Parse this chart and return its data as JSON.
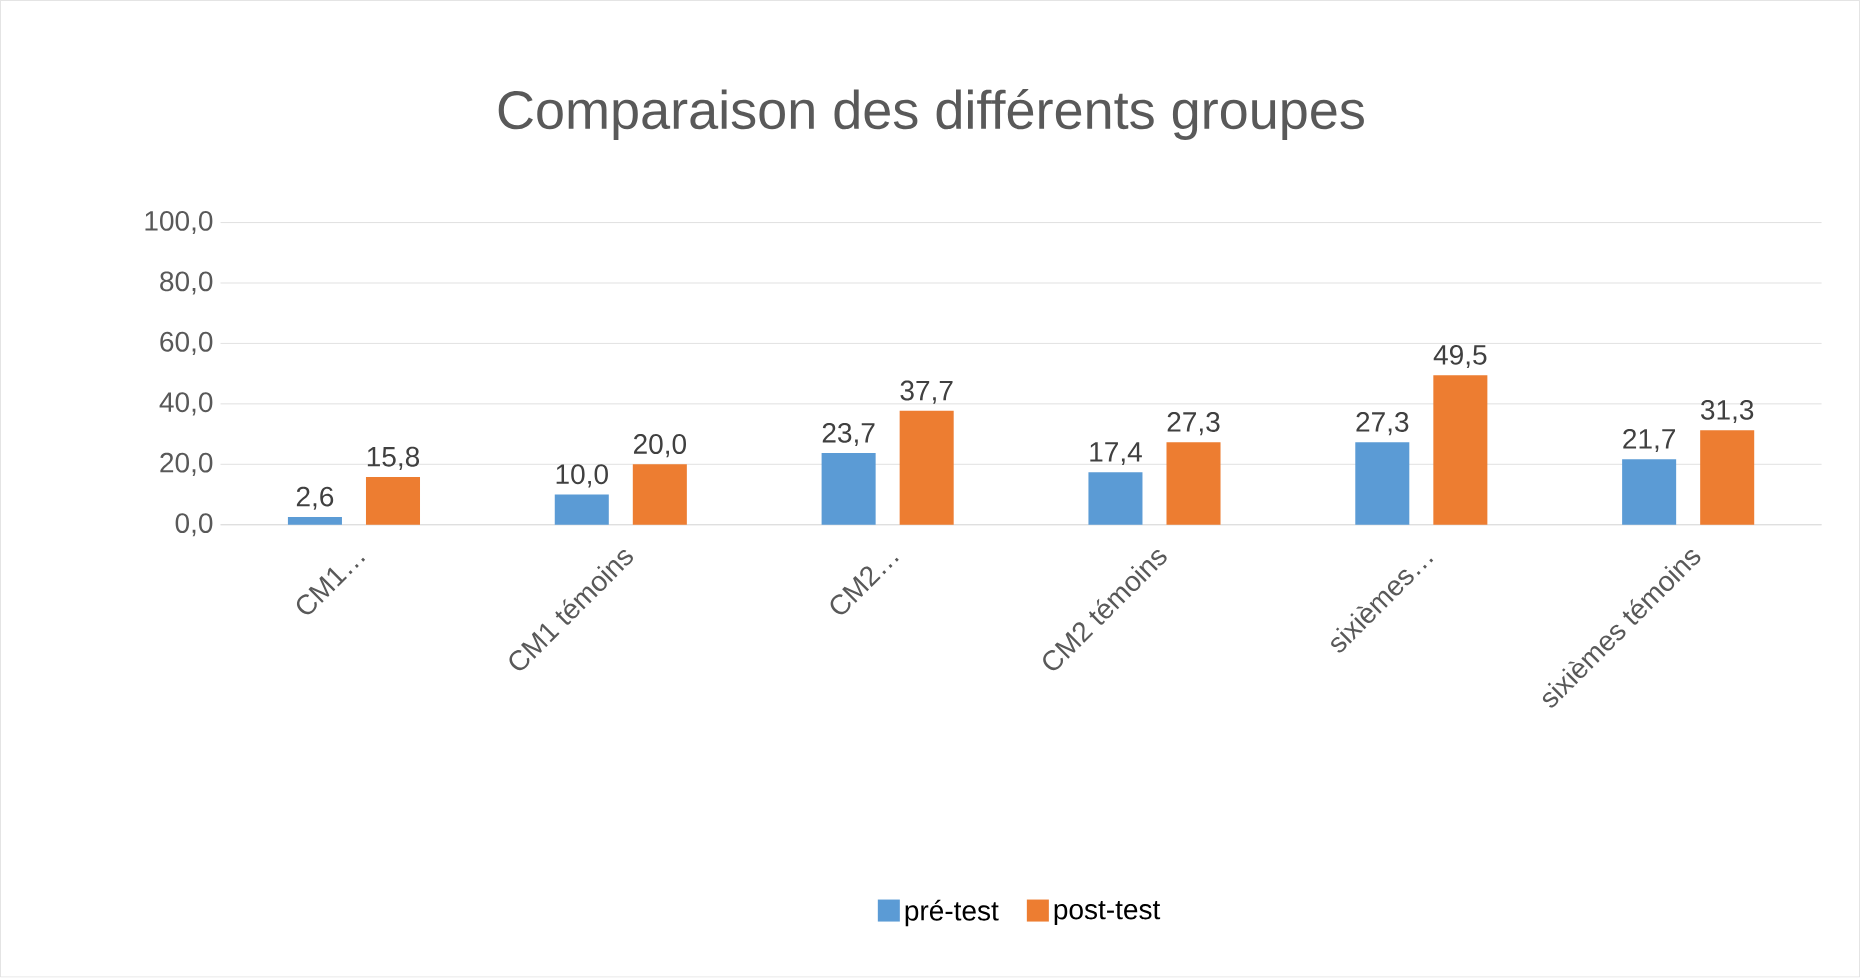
{
  "chart_data": {
    "type": "bar",
    "title": "Comparaison des différents groupes",
    "categories": [
      "CM1…",
      "CM1 témoins",
      "CM2…",
      "CM2 témoins",
      "sixièmes…",
      "sixièmes témoins"
    ],
    "series": [
      {
        "name": "pré-test",
        "color": "#5b9bd5",
        "values": [
          2.6,
          10.0,
          23.7,
          17.4,
          27.3,
          21.7
        ],
        "value_labels": [
          "2,6",
          "10,0",
          "23,7",
          "17,4",
          "27,3",
          "21,7"
        ]
      },
      {
        "name": "post-test",
        "color": "#ed7d31",
        "values": [
          15.8,
          20.0,
          37.7,
          27.3,
          49.5,
          31.3
        ],
        "value_labels": [
          "15,8",
          "20,0",
          "37,7",
          "27,3",
          "49,5",
          "31,3"
        ]
      }
    ],
    "ylim": [
      0,
      100
    ],
    "yticks": [
      {
        "value": 0,
        "label": "0,0"
      },
      {
        "value": 20,
        "label": "20,0"
      },
      {
        "value": 40,
        "label": "40,0"
      },
      {
        "value": 60,
        "label": "60,0"
      },
      {
        "value": 80,
        "label": "80,0"
      },
      {
        "value": 100,
        "label": "100,0"
      }
    ],
    "grid": "y",
    "legend": "bottom"
  }
}
